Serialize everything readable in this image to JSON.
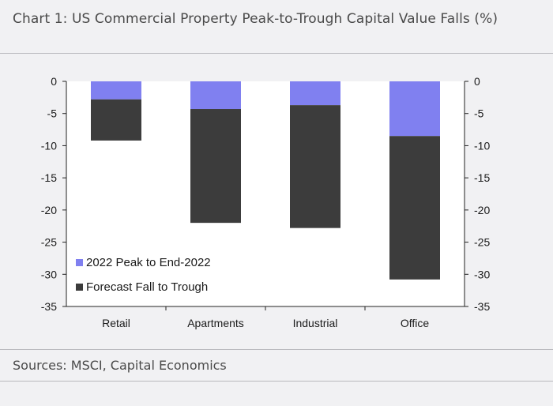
{
  "title": "Chart 1: US Commercial Property Peak-to-Trough Capital Value Falls (%)",
  "sources": "Sources: MSCI, Capital Economics",
  "chart_data": {
    "type": "bar",
    "stacked": true,
    "categories": [
      "Retail",
      "Apartments",
      "Industrial",
      "Office"
    ],
    "series": [
      {
        "name": "2022 Peak to End-2022",
        "color": "#8080f0",
        "values": [
          -2.8,
          -4.3,
          -3.7,
          -8.5
        ]
      },
      {
        "name": "Forecast Fall to Trough",
        "color": "#3c3c3c",
        "values": [
          -6.4,
          -17.7,
          -19.1,
          -22.3
        ]
      }
    ],
    "ylim": [
      -35,
      0
    ],
    "yticks": [
      0,
      -5,
      -10,
      -15,
      -20,
      -25,
      -30,
      -35
    ],
    "dual_y_axis": true,
    "grid": false,
    "legend_position": "bottom-left"
  }
}
